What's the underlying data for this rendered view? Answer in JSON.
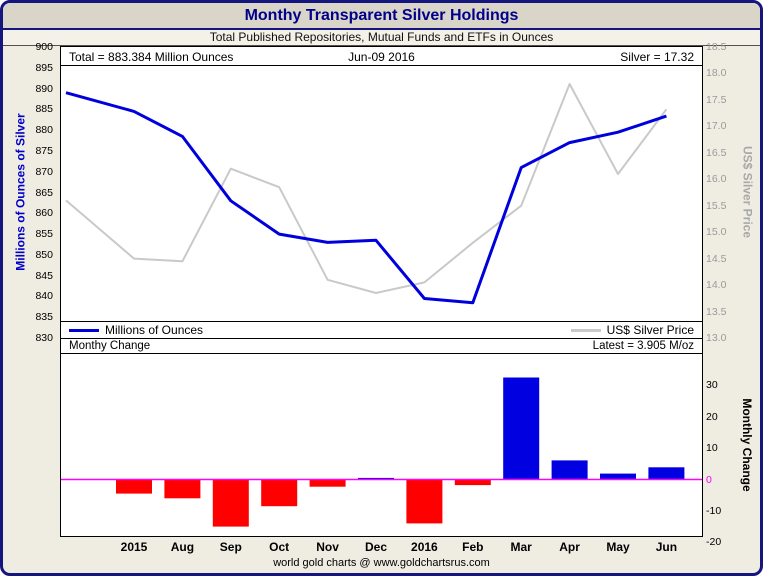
{
  "window": {
    "title": "Monthy Transparent Silver Holdings",
    "subtitle": "Total Published Repositories, Mutual Funds and ETFs in Ounces",
    "footer": "world gold charts @ www.goldchartsrus.com"
  },
  "colors": {
    "title_text": "#00008B",
    "ounces_line": "#0000DD",
    "silver_line": "#C9C9C9",
    "positive_bar": "#0000E0",
    "negative_bar": "#FF0000",
    "zero_line": "#FF00FF",
    "right_axis_text": "#9A9A9A",
    "left_axis_title": "#0000CC"
  },
  "top_chart": {
    "annotation_left": "Total = 883.384 Million Ounces",
    "annotation_center": "Jun-09 2016",
    "annotation_right": "Silver = 17.32",
    "left_axis_title": "Millions of Ounces of Silver",
    "right_axis_title": "US$ Silver Price",
    "legend": {
      "ounces": "Millions of Ounces",
      "silver": "US$ Silver Price"
    }
  },
  "bottom_chart": {
    "header_left": "Monthy Change",
    "header_right": "Latest = 3.905 M/oz",
    "right_axis_title": "Monthly Change"
  },
  "x_labels": [
    "2015",
    "Aug",
    "Sep",
    "Oct",
    "Nov",
    "Dec",
    "2016",
    "Feb",
    "Mar",
    "Apr",
    "May",
    "Jun"
  ],
  "chart_data": [
    {
      "type": "line",
      "title": "Monthy Transparent Silver Holdings",
      "x": [
        "",
        "2015",
        "Aug",
        "Sep",
        "Oct",
        "Nov",
        "Dec",
        "2016",
        "Feb",
        "Mar",
        "Apr",
        "May",
        "Jun"
      ],
      "series": [
        {
          "name": "Millions of Ounces",
          "axis": "left",
          "color": "#0000DD",
          "values": [
            889,
            884.5,
            878.5,
            863,
            855,
            853,
            853.5,
            839.5,
            838.5,
            871,
            877,
            879.5,
            883.384
          ]
        },
        {
          "name": "US$ Silver Price",
          "axis": "right",
          "color": "#C9C9C9",
          "values": [
            15.6,
            14.5,
            14.45,
            16.2,
            15.85,
            14.1,
            13.85,
            14.05,
            14.8,
            15.5,
            17.8,
            16.1,
            17.32
          ]
        }
      ],
      "left_axis": {
        "label": "Millions of Ounces of Silver",
        "min": 830,
        "max": 900,
        "step": 5
      },
      "right_axis": {
        "label": "US$ Silver Price",
        "min": 13.0,
        "max": 18.5,
        "step": 0.5
      },
      "grid": false,
      "legend_position": "bottom-inside"
    },
    {
      "type": "bar",
      "title": "Monthy Change",
      "categories": [
        "2015",
        "Aug",
        "Sep",
        "Oct",
        "Nov",
        "Dec",
        "2016",
        "Feb",
        "Mar",
        "Apr",
        "May",
        "Jun"
      ],
      "values": [
        -4.5,
        -6,
        -15,
        -8.5,
        -2.3,
        0.5,
        -14,
        -1.8,
        32.5,
        6.1,
        1.9,
        3.905
      ],
      "latest": "3.905 M/oz",
      "right_axis": {
        "label": "Monthly Change",
        "ticks": [
          30,
          20,
          10,
          0,
          -10,
          -20
        ],
        "min": -18,
        "max": 40
      }
    }
  ]
}
